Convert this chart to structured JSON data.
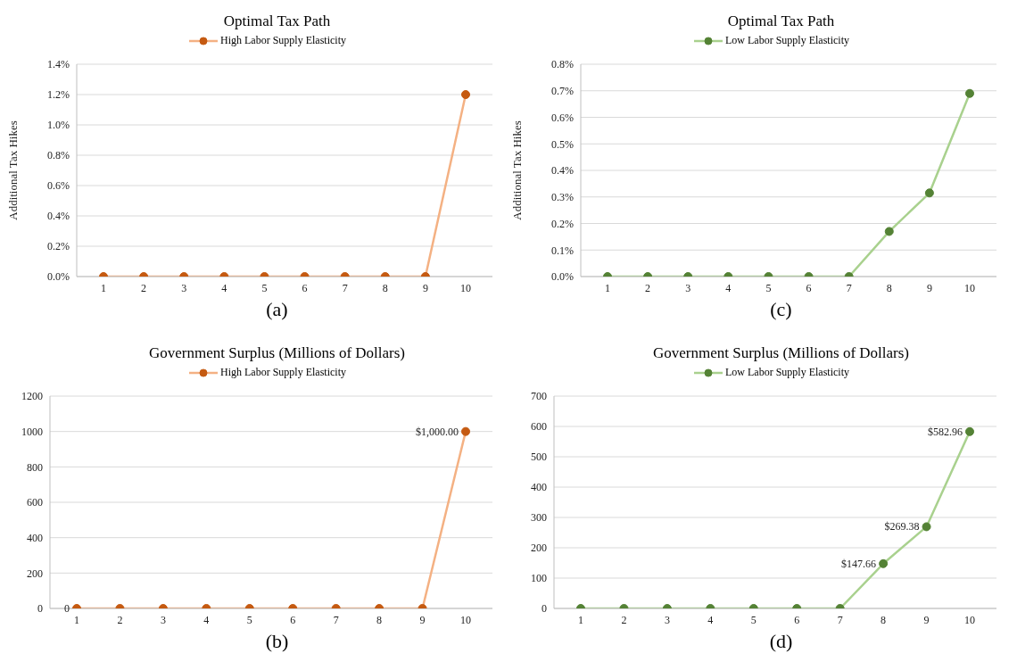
{
  "chart_data": [
    {
      "type": "line",
      "title": "Optimal Tax Path",
      "ylabel": "Additional Tax Hikes",
      "annotations": [
        "(a)"
      ],
      "categories": [
        "1",
        "2",
        "3",
        "4",
        "5",
        "6",
        "7",
        "8",
        "9",
        "10"
      ],
      "series": [
        {
          "name": "High Labor Supply Elasticity",
          "color": "#f4b183",
          "colors": [
            "#c55a11",
            "#c55a11",
            "#c55a11",
            "#c55a11",
            "#c55a11",
            "#c55a11",
            "#c55a11",
            "#c55a11",
            "#c55a11",
            "#c55a11"
          ],
          "values": [
            0,
            0,
            0,
            0,
            0,
            0,
            0,
            0,
            0,
            1.2
          ]
        }
      ],
      "ylim": [
        0,
        1.4
      ],
      "yticks": [
        {
          "value": 0,
          "label": "0.0%"
        },
        {
          "value": 0.2,
          "label": "0.2%"
        },
        {
          "value": 0.4,
          "label": "0.4%"
        },
        {
          "value": 0.6,
          "label": "0.6%"
        },
        {
          "value": 0.8,
          "label": "0.8%"
        },
        {
          "value": 1.0,
          "label": "1.0%"
        },
        {
          "value": 1.2,
          "label": "1.2%"
        },
        {
          "value": 1.4,
          "label": "1.4%"
        }
      ],
      "grid": "y",
      "legend": "top",
      "marker": "circle"
    },
    {
      "type": "line",
      "title": "Optimal Tax Path",
      "ylabel": "Additional Tax Hikes",
      "annotations": [
        "(c)"
      ],
      "categories": [
        "1",
        "2",
        "3",
        "4",
        "5",
        "6",
        "7",
        "8",
        "9",
        "10"
      ],
      "series": [
        {
          "name": "Low Labor Supply Elasticity",
          "color": "#a9d18e",
          "colors": [
            "#548235",
            "#548235",
            "#548235",
            "#548235",
            "#548235",
            "#548235",
            "#548235",
            "#548235",
            "#548235",
            "#548235"
          ],
          "values": [
            0,
            0,
            0,
            0,
            0,
            0,
            0,
            0.17,
            0.315,
            0.69
          ]
        }
      ],
      "ylim": [
        0,
        0.8
      ],
      "yticks": [
        {
          "value": 0,
          "label": "0.0%"
        },
        {
          "value": 0.1,
          "label": "0.1%"
        },
        {
          "value": 0.2,
          "label": "0.2%"
        },
        {
          "value": 0.3,
          "label": "0.3%"
        },
        {
          "value": 0.4,
          "label": "0.4%"
        },
        {
          "value": 0.5,
          "label": "0.5%"
        },
        {
          "value": 0.6,
          "label": "0.6%"
        },
        {
          "value": 0.7,
          "label": "0.7%"
        },
        {
          "value": 0.8,
          "label": "0.8%"
        }
      ],
      "grid": "y",
      "legend": "top",
      "marker": "circle"
    },
    {
      "type": "line",
      "title": "Government Surplus (Millions of Dollars)",
      "annotations": [
        "(b)"
      ],
      "categories": [
        "1",
        "2",
        "3",
        "4",
        "5",
        "6",
        "7",
        "8",
        "9",
        "10"
      ],
      "series": [
        {
          "name": "High Labor Supply Elasticity",
          "color": "#f4b183",
          "colors": [
            "#c55a11",
            "#c55a11",
            "#c55a11",
            "#c55a11",
            "#c55a11",
            "#c55a11",
            "#c55a11",
            "#c55a11",
            "#c55a11",
            "#c55a11"
          ],
          "values": [
            0,
            0,
            0,
            0,
            0,
            0,
            0,
            0,
            0,
            1000
          ],
          "value_labels": [
            "0",
            null,
            null,
            null,
            null,
            null,
            null,
            null,
            null,
            "$1,000.00"
          ]
        }
      ],
      "ylim": [
        0,
        1200
      ],
      "yticks": [
        0,
        200,
        400,
        600,
        800,
        1000,
        1200
      ],
      "grid": "y",
      "legend": "top",
      "marker": "circle"
    },
    {
      "type": "line",
      "title": "Government Surplus (Millions of Dollars)",
      "annotations": [
        "(d)"
      ],
      "categories": [
        "1",
        "2",
        "3",
        "4",
        "5",
        "6",
        "7",
        "8",
        "9",
        "10"
      ],
      "series": [
        {
          "name": "Low Labor Supply Elasticity",
          "color": "#a9d18e",
          "colors": [
            "#548235",
            "#548235",
            "#548235",
            "#548235",
            "#548235",
            "#548235",
            "#548235",
            "#548235",
            "#548235",
            "#548235"
          ],
          "values": [
            0,
            0,
            0,
            0,
            0,
            0,
            0,
            147.66,
            269.38,
            582.96
          ],
          "value_labels": [
            null,
            null,
            null,
            null,
            null,
            null,
            null,
            "$147.66",
            "$269.38",
            "$582.96"
          ]
        }
      ],
      "ylim": [
        0,
        700
      ],
      "yticks": [
        0,
        100,
        200,
        300,
        400,
        500,
        600,
        700
      ],
      "grid": "y",
      "legend": "top",
      "marker": "circle"
    }
  ]
}
